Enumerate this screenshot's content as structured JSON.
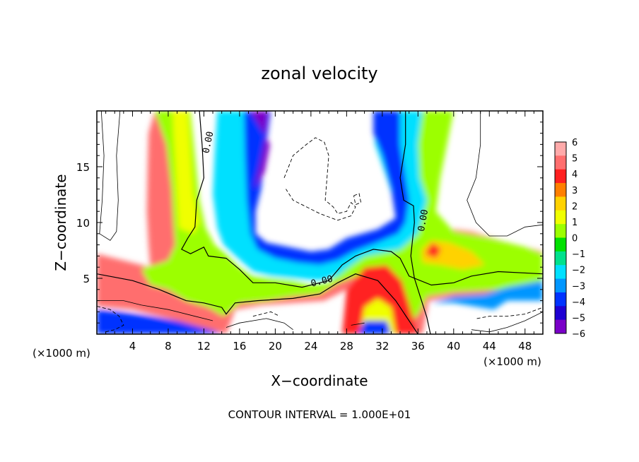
{
  "chart_data": {
    "type": "heatmap",
    "title": "zonal velocity",
    "xlabel": "X−coordinate",
    "ylabel": "Z−coordinate",
    "x_unit_left": "(×1000 m)",
    "x_unit_right": "(×1000 m)",
    "xlim": [
      0,
      50
    ],
    "ylim": [
      0,
      20
    ],
    "xticks": [
      4,
      8,
      12,
      16,
      20,
      24,
      28,
      32,
      36,
      40,
      44,
      48
    ],
    "yticks": [
      5,
      10,
      15
    ],
    "footer": "CONTOUR INTERVAL = 1.000E+01",
    "contour_labels": [
      "0.00",
      "0.00",
      "0.00"
    ],
    "colorbar": {
      "ticks": [
        "6",
        "5",
        "4",
        "3",
        "2",
        "1",
        "0",
        "−1",
        "−2",
        "−3",
        "−4",
        "−5",
        "−6"
      ],
      "colors": [
        "#ffaaaa",
        "#ff6e6e",
        "#ff2020",
        "#ff7f00",
        "#ffd200",
        "#f0ff00",
        "#9cff00",
        "#00e100",
        "#00e18c",
        "#00e0ff",
        "#0096ff",
        "#0033ff",
        "#1e00d2",
        "#7a00c8"
      ]
    },
    "bands": [
      {
        "name": "far-left-neg",
        "color": "#0033ff",
        "pts": [
          [
            0,
            2.2
          ],
          [
            2.5,
            2.0
          ],
          [
            6,
            1.6
          ],
          [
            9,
            1.2
          ],
          [
            12,
            0.7
          ],
          [
            14,
            0
          ],
          [
            0,
            0
          ]
        ]
      },
      {
        "name": "left-pos",
        "color": "#ff6e6e",
        "pts": [
          [
            0,
            7.2
          ],
          [
            3,
            6.6
          ],
          [
            6,
            6.0
          ],
          [
            5.8,
            8
          ],
          [
            5.6,
            11
          ],
          [
            5.7,
            15
          ],
          [
            5.8,
            18
          ],
          [
            6.5,
            20
          ],
          [
            10.5,
            20
          ],
          [
            10.5,
            17
          ],
          [
            11,
            13
          ],
          [
            11.8,
            10
          ],
          [
            12.6,
            8
          ],
          [
            13.8,
            7.4
          ],
          [
            15.5,
            6.2
          ],
          [
            17.5,
            4.8
          ],
          [
            21,
            4.6
          ],
          [
            25,
            4.2
          ],
          [
            26.5,
            4.8
          ],
          [
            28.5,
            6.4
          ],
          [
            30.5,
            7.5
          ],
          [
            33.5,
            8.6
          ],
          [
            35,
            9.4
          ],
          [
            38,
            9.6
          ],
          [
            42,
            9.2
          ],
          [
            46,
            8.2
          ],
          [
            50,
            7.4
          ],
          [
            50,
            3.0
          ],
          [
            45,
            3.2
          ],
          [
            40,
            3.4
          ],
          [
            37.2,
            3.0
          ],
          [
            36.5,
            0
          ],
          [
            33.5,
            0
          ],
          [
            33,
            1.5
          ],
          [
            31.5,
            3.5
          ],
          [
            29.5,
            4.5
          ],
          [
            27.5,
            3.8
          ],
          [
            25.5,
            3.0
          ],
          [
            22,
            2.8
          ],
          [
            18.5,
            2.6
          ],
          [
            15.5,
            2.2
          ],
          [
            14.5,
            0
          ],
          [
            9,
            1.2
          ],
          [
            4,
            2.2
          ],
          [
            0,
            2.5
          ]
        ]
      },
      {
        "name": "left-green",
        "color": "#9cff00",
        "pts": [
          [
            6.5,
            20
          ],
          [
            10.5,
            20
          ],
          [
            11,
            16
          ],
          [
            11.5,
            12
          ],
          [
            12.2,
            9.5
          ],
          [
            13.2,
            8
          ],
          [
            14.5,
            7.2
          ],
          [
            16,
            6
          ],
          [
            17.5,
            5.2
          ],
          [
            19.5,
            5.0
          ],
          [
            22,
            4.8
          ],
          [
            24,
            4.4
          ],
          [
            26,
            4.6
          ],
          [
            27.5,
            5.8
          ],
          [
            30,
            7.0
          ],
          [
            33,
            7.8
          ],
          [
            35,
            8.4
          ],
          [
            35.5,
            9.5
          ],
          [
            33.5,
            10.5
          ],
          [
            35,
            12.5
          ],
          [
            37,
            12
          ],
          [
            36,
            14
          ],
          [
            35.5,
            17
          ],
          [
            36.5,
            20
          ],
          [
            40,
            20
          ],
          [
            38.5,
            14
          ],
          [
            38,
            11
          ],
          [
            40,
            9.2
          ],
          [
            44,
            8.6
          ],
          [
            48,
            7.8
          ],
          [
            50,
            7.2
          ],
          [
            50,
            4.5
          ],
          [
            45,
            4.0
          ],
          [
            40,
            3.8
          ],
          [
            37,
            3.4
          ],
          [
            36.2,
            2.0
          ],
          [
            35,
            0.8
          ],
          [
            34,
            1.2
          ],
          [
            33.5,
            2.5
          ],
          [
            31.5,
            4.4
          ],
          [
            29,
            5.2
          ],
          [
            27,
            4.6
          ],
          [
            25,
            3.6
          ],
          [
            22,
            3.4
          ],
          [
            19,
            3.0
          ],
          [
            16,
            2.8
          ],
          [
            14.2,
            1.6
          ],
          [
            12.5,
            2.4
          ],
          [
            10,
            3.0
          ],
          [
            8,
            4.0
          ],
          [
            6,
            4.4
          ],
          [
            5,
            5.8
          ],
          [
            8,
            6.6
          ],
          [
            8.8,
            8
          ],
          [
            8.6,
            10
          ],
          [
            8.4,
            13
          ],
          [
            7.8,
            17
          ]
        ]
      },
      {
        "name": "left-yellow",
        "color": "#f0ff00",
        "pts": [
          [
            8.5,
            20
          ],
          [
            10.2,
            20
          ],
          [
            10.5,
            16
          ],
          [
            10.8,
            12.5
          ],
          [
            11.5,
            10
          ],
          [
            10.8,
            9
          ],
          [
            9.2,
            9.5
          ],
          [
            9.0,
            12
          ],
          [
            8.8,
            15
          ],
          [
            8.6,
            18
          ]
        ]
      },
      {
        "name": "mid-teal",
        "color": "#00e0ff",
        "pts": [
          [
            13.5,
            20
          ],
          [
            18.5,
            20
          ],
          [
            18,
            16
          ],
          [
            17.2,
            12
          ],
          [
            17.4,
            9
          ],
          [
            18.2,
            7.6
          ],
          [
            20.5,
            7.0
          ],
          [
            23,
            6.6
          ],
          [
            25,
            6.2
          ],
          [
            26.5,
            6.6
          ],
          [
            27,
            7.8
          ],
          [
            29,
            8.6
          ],
          [
            33,
            8.8
          ],
          [
            34,
            9.6
          ],
          [
            33.5,
            11.5
          ],
          [
            32.5,
            14
          ],
          [
            31.2,
            17
          ],
          [
            31,
            20
          ],
          [
            36.5,
            20
          ],
          [
            36,
            17
          ],
          [
            36.2,
            14
          ],
          [
            37,
            12
          ],
          [
            36.5,
            10.5
          ],
          [
            36,
            9
          ],
          [
            34,
            7.6
          ],
          [
            30,
            7.0
          ],
          [
            28.2,
            6.0
          ],
          [
            27,
            5.2
          ],
          [
            25,
            4.8
          ],
          [
            22,
            5.0
          ],
          [
            19.5,
            5.2
          ],
          [
            17.5,
            5.6
          ],
          [
            15.5,
            7.0
          ],
          [
            14.2,
            8.0
          ],
          [
            13.5,
            9.5
          ],
          [
            13,
            12.5
          ],
          [
            13.2,
            16
          ]
        ]
      },
      {
        "name": "mid-blue",
        "color": "#0033ff",
        "pts": [
          [
            16.5,
            20
          ],
          [
            19.5,
            20
          ],
          [
            19,
            17
          ],
          [
            18.4,
            13
          ],
          [
            17.8,
            11
          ],
          [
            17.8,
            9
          ],
          [
            19,
            8.2
          ],
          [
            21.5,
            7.8
          ],
          [
            24,
            7.4
          ],
          [
            26,
            7.6
          ],
          [
            28,
            8.6
          ],
          [
            31.5,
            9.4
          ],
          [
            33.5,
            10.4
          ],
          [
            33,
            13
          ],
          [
            32,
            16
          ],
          [
            31,
            18
          ],
          [
            31,
            20
          ],
          [
            34,
            20
          ],
          [
            34,
            17
          ],
          [
            34.6,
            14
          ],
          [
            35,
            12
          ],
          [
            34.6,
            10
          ],
          [
            33.8,
            9
          ],
          [
            31.5,
            8.2
          ],
          [
            28.8,
            7.4
          ],
          [
            27,
            6.6
          ],
          [
            25,
            6.2
          ],
          [
            22.5,
            6.4
          ],
          [
            20,
            6.8
          ],
          [
            18,
            7.6
          ],
          [
            17.2,
            9
          ],
          [
            16.8,
            12
          ],
          [
            16.6,
            16
          ]
        ]
      },
      {
        "name": "mid-purple",
        "color": "#7a00c8",
        "pts": [
          [
            17.2,
            20
          ],
          [
            19.2,
            20
          ],
          [
            18.8,
            17.5
          ],
          [
            18.2,
            15
          ],
          [
            17.6,
            13
          ],
          [
            18.8,
            14.5
          ],
          [
            19.4,
            17
          ]
        ]
      },
      {
        "name": "mid-bottom",
        "color": "#ff2020",
        "pts": [
          [
            27.5,
            0
          ],
          [
            28,
            4.0
          ],
          [
            30,
            6.0
          ],
          [
            32.5,
            6.2
          ],
          [
            34.2,
            4.8
          ],
          [
            35,
            2.8
          ],
          [
            36,
            0
          ]
        ]
      },
      {
        "name": "mid-bottom-y",
        "color": "#f0ff00",
        "pts": [
          [
            29.5,
            0
          ],
          [
            30,
            2.4
          ],
          [
            31.5,
            3.2
          ],
          [
            33,
            2.4
          ],
          [
            33.5,
            0
          ]
        ]
      },
      {
        "name": "mid-bottom-b",
        "color": "#0033ff",
        "pts": [
          [
            29.3,
            0
          ],
          [
            30,
            1.2
          ],
          [
            32.5,
            1.2
          ],
          [
            33,
            0
          ]
        ]
      },
      {
        "name": "right-yellow",
        "color": "#ffd200",
        "pts": [
          [
            36.5,
            6.4
          ],
          [
            38.5,
            6.2
          ],
          [
            41,
            5.8
          ],
          [
            43.5,
            6.2
          ],
          [
            42,
            7.4
          ],
          [
            39.5,
            8.2
          ],
          [
            37.5,
            8.4
          ],
          [
            36.4,
            7.6
          ]
        ]
      },
      {
        "name": "right-red-spot",
        "color": "#ff2020",
        "pts": [
          [
            36.8,
            7.2
          ],
          [
            38,
            6.8
          ],
          [
            38.6,
            7.6
          ],
          [
            37.6,
            8.2
          ]
        ]
      },
      {
        "name": "right-blue",
        "color": "#0096ff",
        "pts": [
          [
            37.5,
            2.8
          ],
          [
            40,
            3.4
          ],
          [
            43.5,
            3.6
          ],
          [
            46,
            4.2
          ],
          [
            50,
            4.8
          ],
          [
            50,
            3.0
          ],
          [
            46,
            3.0
          ],
          [
            44.5,
            2.2
          ],
          [
            43,
            2.4
          ],
          [
            40,
            2.8
          ]
        ]
      }
    ]
  }
}
